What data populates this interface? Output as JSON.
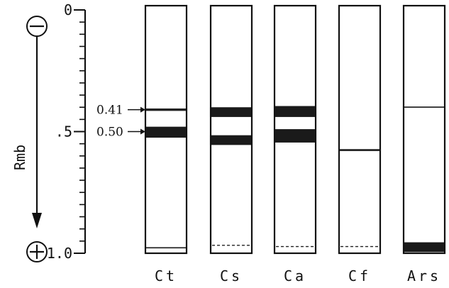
{
  "axis": {
    "label": "Rmb",
    "negative_symbol": "⊖",
    "positive_symbol": "⊕",
    "ticks": [
      {
        "value": 0,
        "label": "0"
      },
      {
        "value": 0.5,
        "label": ".5"
      },
      {
        "value": 1.0,
        "label": "1.0"
      }
    ],
    "minor_tick_step": 0.05
  },
  "annotations": [
    {
      "label": "0.41",
      "value": 0.41
    },
    {
      "label": "0.50",
      "value": 0.5
    }
  ],
  "lanes": [
    {
      "label": "Ct",
      "bands": [
        {
          "start": 0.405,
          "end": 0.415,
          "style": "thin"
        },
        {
          "start": 0.48,
          "end": 0.525,
          "style": "dark"
        },
        {
          "start": 0.975,
          "end": 0.98,
          "style": "thin"
        }
      ]
    },
    {
      "label": "Cs",
      "bands": [
        {
          "start": 0.4,
          "end": 0.44,
          "style": "dark"
        },
        {
          "start": 0.515,
          "end": 0.555,
          "style": "dark"
        },
        {
          "start": 0.965,
          "end": 0.97,
          "style": "dashed"
        }
      ]
    },
    {
      "label": "Ca",
      "bands": [
        {
          "start": 0.395,
          "end": 0.44,
          "style": "dark"
        },
        {
          "start": 0.49,
          "end": 0.545,
          "style": "dark"
        },
        {
          "start": 0.97,
          "end": 0.975,
          "style": "dashed"
        }
      ]
    },
    {
      "label": "Cf",
      "bands": [
        {
          "start": 0.572,
          "end": 0.58,
          "style": "thin"
        },
        {
          "start": 0.97,
          "end": 0.975,
          "style": "dashed"
        }
      ]
    },
    {
      "label": "Ars",
      "bands": [
        {
          "start": 0.397,
          "end": 0.402,
          "style": "thin"
        },
        {
          "start": 0.955,
          "end": 0.995,
          "style": "dark"
        }
      ]
    }
  ],
  "colors": {
    "ink": "#111111",
    "band": "#1a1a1a",
    "background": "#ffffff"
  }
}
